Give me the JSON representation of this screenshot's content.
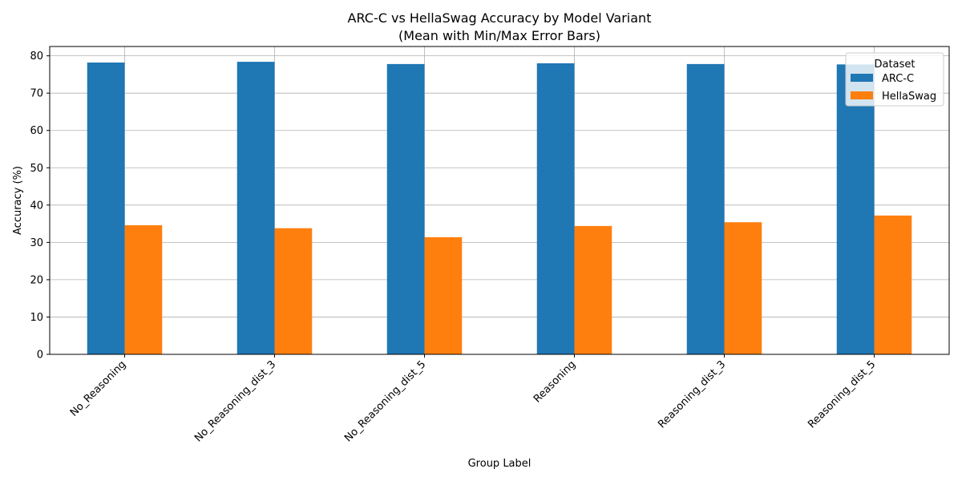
{
  "chart_data": {
    "type": "bar",
    "title_line1": "ARC-C vs HellaSwag Accuracy by Model Variant",
    "title_line2": "(Mean with Min/Max Error Bars)",
    "xlabel": "Group Label",
    "ylabel": "Accuracy (%)",
    "ylim": [
      0,
      82.5
    ],
    "yticks": [
      0,
      10,
      20,
      30,
      40,
      50,
      60,
      70,
      80
    ],
    "grid": true,
    "legend": {
      "title": "Dataset",
      "position": "top-right"
    },
    "categories": [
      "No_Reasoning",
      "No_Reasoning_dist_3",
      "No_Reasoning_dist_5",
      "Reasoning",
      "Reasoning_dist_3",
      "Reasoning_dist_5"
    ],
    "series": [
      {
        "name": "ARC-C",
        "color": "#1f77b4",
        "values": [
          78.2,
          78.4,
          77.8,
          78.0,
          77.8,
          77.7
        ]
      },
      {
        "name": "HellaSwag",
        "color": "#ff7f0e",
        "values": [
          34.6,
          33.8,
          31.4,
          34.4,
          35.4,
          37.2
        ]
      }
    ]
  }
}
